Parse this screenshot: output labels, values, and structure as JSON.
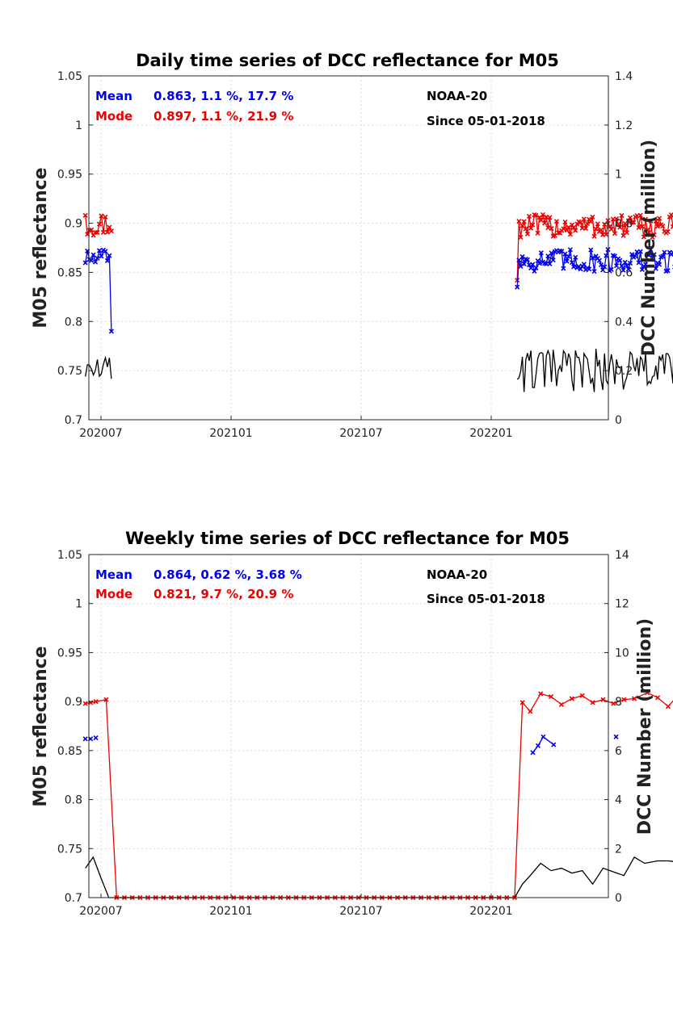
{
  "chart_data": [
    {
      "type": "line",
      "title": "Daily time series of DCC reflectance for M05",
      "ylabel": "M05 reflectance",
      "y2label": "DCC Number (million)",
      "x_ticklabels": [
        "202007",
        "202101",
        "202107",
        "202201"
      ],
      "ylim": [
        0.7,
        1.05
      ],
      "y_ticks": [
        "0.7",
        "0.75",
        "0.8",
        "0.85",
        "0.9",
        "0.95",
        "1",
        "1.05"
      ],
      "y2lim": [
        0,
        1.4
      ],
      "y2_ticks": [
        "0",
        "0.2",
        "0.4",
        "0.6",
        "0.8",
        "1",
        "1.2",
        "1.4"
      ],
      "grid": true,
      "annotations": {
        "mean_label": "Mean",
        "mean_stats": "0.863, 1.1 %, 17.7 %",
        "mode_label": "Mode",
        "mode_stats": "0.897, 1.1 %, 21.9 %",
        "satellite": "NOAA-20",
        "since": "Since 05-01-2018"
      },
      "colors": {
        "mean": "#0000ee",
        "mode": "#ee0000",
        "count": "#000000"
      },
      "series": [
        {
          "key": "mode",
          "marker": true,
          "segments": [
            {
              "t0": 2020.44,
              "t1": 2020.54,
              "n": 14,
              "base": 0.899,
              "amp": 0.012,
              "first": 0.908
            },
            {
              "t0": 2022.1,
              "t1": 2022.85,
              "n": 115,
              "base": 0.897,
              "amp": 0.012,
              "first": 0.842
            }
          ]
        },
        {
          "key": "mean",
          "marker": true,
          "segments": [
            {
              "t0": 2020.44,
              "t1": 2020.54,
              "n": 14,
              "base": 0.864,
              "amp": 0.01,
              "last": 0.79
            },
            {
              "t0": 2022.1,
              "t1": 2022.85,
              "n": 115,
              "base": 0.862,
              "amp": 0.012,
              "first": 0.835
            }
          ]
        },
        {
          "key": "count",
          "axis": "y2",
          "marker": false,
          "segments": [
            {
              "t0": 2020.44,
              "t1": 2020.54,
              "n": 14,
              "base": 0.2,
              "amp": 0.06
            },
            {
              "t0": 2022.1,
              "t1": 2022.85,
              "n": 115,
              "base": 0.2,
              "amp": 0.09,
              "peak": 0.53
            }
          ]
        }
      ]
    },
    {
      "type": "line",
      "title": "Weekly time series of DCC reflectance for M05",
      "ylabel": "M05 reflectance",
      "y2label": "DCC Number (million)",
      "x_ticklabels": [
        "202007",
        "202101",
        "202107",
        "202201"
      ],
      "ylim": [
        0.7,
        1.05
      ],
      "y_ticks": [
        "0.7",
        "0.75",
        "0.8",
        "0.85",
        "0.9",
        "0.95",
        "1",
        "1.05"
      ],
      "y2lim": [
        0,
        14
      ],
      "y2_ticks": [
        "0",
        "2",
        "4",
        "6",
        "8",
        "10",
        "12",
        "14"
      ],
      "grid": true,
      "annotations": {
        "mean_label": "Mean",
        "mean_stats": "0.864, 0.62 %, 3.68 %",
        "mode_label": "Mode",
        "mode_stats": "0.821, 9.7 %, 20.9 %",
        "satellite": "NOAA-20",
        "since": "Since 05-01-2018"
      },
      "colors": {
        "mean": "#0000ee",
        "mode": "#ee0000",
        "count": "#000000"
      },
      "mode_points": [
        [
          2020.44,
          0.898
        ],
        [
          2020.46,
          0.899
        ],
        [
          2020.48,
          0.9
        ],
        [
          2020.52,
          0.902
        ],
        [
          2022.12,
          0.899
        ],
        [
          2022.15,
          0.89
        ],
        [
          2022.19,
          0.908
        ],
        [
          2022.23,
          0.905
        ],
        [
          2022.27,
          0.897
        ],
        [
          2022.31,
          0.903
        ],
        [
          2022.35,
          0.906
        ],
        [
          2022.39,
          0.899
        ],
        [
          2022.43,
          0.902
        ],
        [
          2022.47,
          0.898
        ],
        [
          2022.51,
          0.902
        ],
        [
          2022.55,
          0.903
        ],
        [
          2022.6,
          0.909
        ],
        [
          2022.64,
          0.904
        ],
        [
          2022.68,
          0.895
        ],
        [
          2022.72,
          0.907
        ],
        [
          2022.76,
          0.9
        ],
        [
          2022.8,
          0.894
        ]
      ],
      "mode_zero_range": [
        2020.56,
        2022.09
      ],
      "mode_zero_value": 0.7,
      "mean_points": [
        [
          2020.44,
          0.862
        ],
        [
          2020.46,
          0.862
        ],
        [
          2020.48,
          0.863
        ],
        [
          2022.16,
          0.848
        ],
        [
          2022.18,
          0.855
        ],
        [
          2022.2,
          0.864
        ],
        [
          2022.24,
          0.856
        ],
        [
          2022.48,
          0.864
        ],
        [
          2022.76,
          0.863
        ]
      ],
      "mean_connect": [
        [
          3,
          4
        ],
        [
          4,
          5
        ],
        [
          5,
          6
        ]
      ],
      "count_points": [
        [
          2020.44,
          1.2
        ],
        [
          2020.47,
          1.65
        ],
        [
          2020.5,
          0.8
        ],
        [
          2020.53,
          0.0
        ],
        [
          2022.09,
          0.0
        ],
        [
          2022.12,
          0.55
        ],
        [
          2022.15,
          0.9
        ],
        [
          2022.19,
          1.4
        ],
        [
          2022.23,
          1.1
        ],
        [
          2022.27,
          1.2
        ],
        [
          2022.31,
          1.0
        ],
        [
          2022.35,
          1.1
        ],
        [
          2022.39,
          0.55
        ],
        [
          2022.43,
          1.2
        ],
        [
          2022.47,
          1.05
        ],
        [
          2022.51,
          0.9
        ],
        [
          2022.55,
          1.65
        ],
        [
          2022.59,
          1.4
        ],
        [
          2022.64,
          1.5
        ],
        [
          2022.68,
          1.5
        ],
        [
          2022.72,
          1.45
        ],
        [
          2022.76,
          1.2
        ]
      ]
    }
  ]
}
